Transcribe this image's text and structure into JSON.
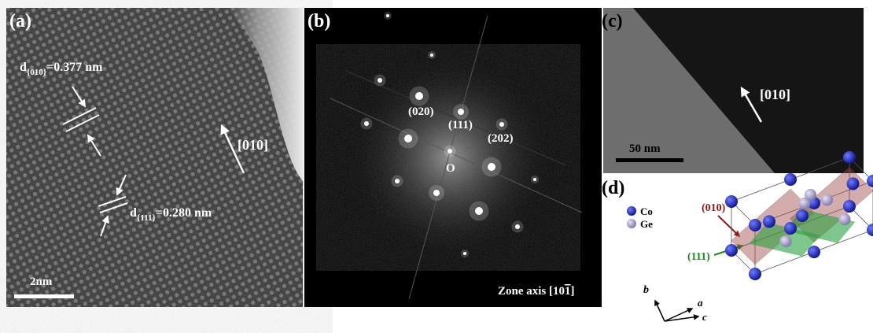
{
  "panels": {
    "a": {
      "label": "(a)",
      "d010": {
        "symbol": "d",
        "index": "{010}",
        "value": "=0.377 nm"
      },
      "direction": "[010]",
      "d111": {
        "symbol": "d",
        "index": "{111}",
        "value": "=0.280 nm"
      },
      "scale_bar": "2nm"
    },
    "b": {
      "label": "(b)",
      "spots": [
        "(020)",
        "(111)",
        "(202)"
      ],
      "origin": "O",
      "zone_axis": {
        "prefix": "Zone axis [10",
        "barred": "1",
        "suffix": "]"
      }
    },
    "c": {
      "label": "(c)",
      "direction": "[010]",
      "scale_bar": "50 nm"
    },
    "d": {
      "label": "(d)",
      "legend": [
        "Co",
        "Ge"
      ],
      "planes": [
        "(010)",
        "(111)"
      ],
      "axes": [
        "b",
        "a",
        "c"
      ]
    }
  }
}
